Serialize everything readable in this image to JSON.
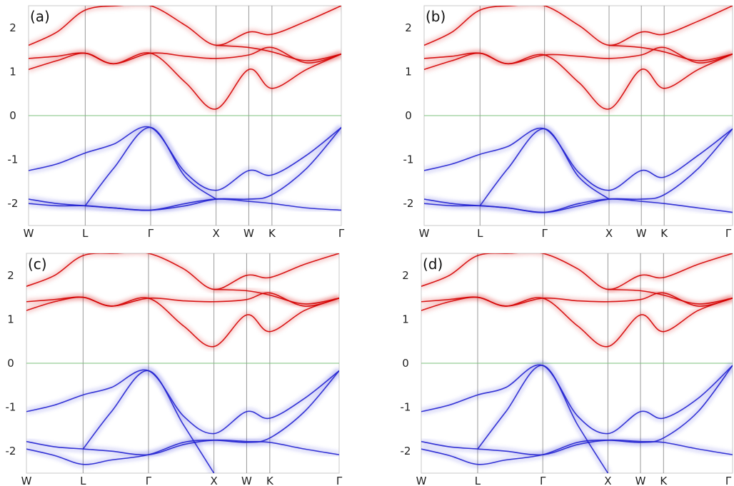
{
  "chart_data": [
    {
      "type": "line",
      "panel_label": "(a)",
      "xlabel": "",
      "ylabel": "",
      "xticks": [
        "W",
        "L",
        "Γ",
        "X",
        "W",
        "K",
        "Γ"
      ],
      "xtick_positions": [
        0,
        0.866,
        1.866,
        2.866,
        3.366,
        3.72,
        4.78
      ],
      "yticks": [
        -2,
        -1,
        0,
        1,
        2
      ],
      "ylim": [
        -2.5,
        2.5
      ],
      "xlim": [
        0,
        4.78
      ],
      "fermi_level": 0,
      "grid": "vertical lines at high-symmetry points",
      "series": [
        {
          "color": "#d40000",
          "x": [
            0,
            0.433,
            0.866,
            1.3,
            1.866,
            2.4,
            2.866,
            3.366,
            3.72,
            4.25,
            4.78
          ],
          "y": [
            1.05,
            1.25,
            1.42,
            1.18,
            1.42,
            0.75,
            0.15,
            1.05,
            0.62,
            1.05,
            1.4
          ]
        },
        {
          "color": "#d40000",
          "x": [
            0,
            0.433,
            0.866,
            1.3,
            1.866,
            2.4,
            2.866,
            3.366,
            3.72,
            4.25,
            4.78
          ],
          "y": [
            1.3,
            1.35,
            1.42,
            1.18,
            1.42,
            1.35,
            1.3,
            1.38,
            1.55,
            1.2,
            1.4
          ]
        },
        {
          "color": "#d40000",
          "x": [
            0,
            0.433,
            0.866,
            1.366,
            1.866,
            2.4,
            2.866,
            3.366,
            3.72,
            4.25,
            4.78
          ],
          "y": [
            1.6,
            1.9,
            2.4,
            2.5,
            2.5,
            2.05,
            1.6,
            1.9,
            1.85,
            2.15,
            2.5
          ]
        },
        {
          "color": "#d40000",
          "x": [
            2.866,
            3.366,
            3.72,
            4.25,
            4.78
          ],
          "y": [
            1.6,
            1.55,
            1.45,
            1.25,
            1.4
          ]
        },
        {
          "color": "#2020d0",
          "x": [
            0,
            0.433,
            0.866,
            1.3,
            1.866,
            2.4,
            2.866,
            3.366,
            3.72,
            4.25,
            4.78
          ],
          "y": [
            -1.25,
            -1.1,
            -0.85,
            -0.65,
            -0.27,
            -1.3,
            -1.7,
            -1.25,
            -1.35,
            -0.9,
            -0.27
          ]
        },
        {
          "color": "#2020d0",
          "x": [
            0,
            0.433,
            0.866,
            1.3,
            1.866,
            2.4,
            2.866,
            3.366,
            3.72,
            4.25,
            4.78
          ],
          "y": [
            -1.9,
            -2.0,
            -2.05,
            -2.1,
            -2.15,
            -2.05,
            -1.9,
            -1.9,
            -1.8,
            -1.2,
            -0.27
          ]
        },
        {
          "color": "#2020d0",
          "x": [
            0,
            0.433,
            0.866,
            1.3,
            1.866,
            2.4,
            2.866,
            3.366,
            3.72,
            4.25,
            4.78
          ],
          "y": [
            -2.0,
            -2.05,
            -2.05,
            -2.1,
            -2.15,
            -2.0,
            -1.9,
            -1.95,
            -2.0,
            -2.1,
            -2.15
          ]
        },
        {
          "color": "#2020d0",
          "x": [
            0.866,
            1.3,
            1.866,
            2.4,
            2.866
          ],
          "y": [
            -2.05,
            -1.2,
            -0.27,
            -1.4,
            -1.9
          ]
        }
      ]
    },
    {
      "type": "line",
      "panel_label": "(b)",
      "xlabel": "",
      "ylabel": "",
      "xticks": [
        "W",
        "L",
        "Γ",
        "X",
        "W",
        "K",
        "Γ"
      ],
      "xtick_positions": [
        0,
        0.866,
        1.866,
        2.866,
        3.366,
        3.72,
        4.78
      ],
      "yticks": [
        -2,
        -1,
        0,
        1,
        2
      ],
      "ylim": [
        -2.5,
        2.5
      ],
      "xlim": [
        0,
        4.78
      ],
      "fermi_level": 0,
      "grid": "vertical lines at high-symmetry points",
      "series": [
        {
          "color": "#d40000",
          "x": [
            0,
            0.433,
            0.866,
            1.3,
            1.866,
            2.4,
            2.866,
            3.366,
            3.72,
            4.25,
            4.78
          ],
          "y": [
            1.05,
            1.25,
            1.42,
            1.18,
            1.38,
            0.75,
            0.15,
            1.05,
            0.62,
            1.05,
            1.4
          ]
        },
        {
          "color": "#d40000",
          "x": [
            0,
            0.433,
            0.866,
            1.3,
            1.866,
            2.4,
            2.866,
            3.366,
            3.72,
            4.25,
            4.78
          ],
          "y": [
            1.3,
            1.35,
            1.42,
            1.18,
            1.38,
            1.35,
            1.3,
            1.38,
            1.55,
            1.2,
            1.4
          ]
        },
        {
          "color": "#d40000",
          "x": [
            0,
            0.433,
            0.866,
            1.366,
            1.866,
            2.4,
            2.866,
            3.366,
            3.72,
            4.25,
            4.78
          ],
          "y": [
            1.6,
            1.9,
            2.4,
            2.5,
            2.5,
            2.05,
            1.6,
            1.9,
            1.85,
            2.15,
            2.5
          ]
        },
        {
          "color": "#d40000",
          "x": [
            2.866,
            3.366,
            3.72,
            4.25,
            4.78
          ],
          "y": [
            1.6,
            1.55,
            1.45,
            1.25,
            1.4
          ]
        },
        {
          "color": "#2020d0",
          "x": [
            0,
            0.433,
            0.866,
            1.3,
            1.866,
            2.4,
            2.866,
            3.366,
            3.72,
            4.25,
            4.78
          ],
          "y": [
            -1.25,
            -1.1,
            -0.88,
            -0.7,
            -0.3,
            -1.3,
            -1.7,
            -1.25,
            -1.4,
            -0.9,
            -0.3
          ]
        },
        {
          "color": "#2020d0",
          "x": [
            0,
            0.433,
            0.866,
            1.3,
            1.866,
            2.4,
            2.866,
            3.366,
            3.72,
            4.25,
            4.78
          ],
          "y": [
            -1.9,
            -2.0,
            -2.05,
            -2.1,
            -2.2,
            -2.05,
            -1.9,
            -1.9,
            -1.8,
            -1.2,
            -0.3
          ]
        },
        {
          "color": "#2020d0",
          "x": [
            0,
            0.433,
            0.866,
            1.3,
            1.866,
            2.4,
            2.866,
            3.366,
            3.72,
            4.25,
            4.78
          ],
          "y": [
            -2.0,
            -2.05,
            -2.05,
            -2.1,
            -2.2,
            -2.0,
            -1.9,
            -1.95,
            -2.0,
            -2.1,
            -2.2
          ]
        },
        {
          "color": "#2020d0",
          "x": [
            0.866,
            1.3,
            1.866,
            2.4,
            2.866
          ],
          "y": [
            -2.05,
            -1.2,
            -0.3,
            -1.4,
            -1.9
          ]
        }
      ]
    },
    {
      "type": "line",
      "panel_label": "(c)",
      "xlabel": "",
      "ylabel": "",
      "xticks": [
        "W",
        "L",
        "Γ",
        "X",
        "W",
        "K",
        "Γ"
      ],
      "xtick_positions": [
        0,
        0.866,
        1.866,
        2.866,
        3.366,
        3.72,
        4.78
      ],
      "yticks": [
        -2,
        -1,
        0,
        1,
        2
      ],
      "ylim": [
        -2.5,
        2.5
      ],
      "xlim": [
        0,
        4.78
      ],
      "fermi_level": 0,
      "grid": "vertical lines at high-symmetry points",
      "series": [
        {
          "color": "#d40000",
          "x": [
            0,
            0.433,
            0.866,
            1.3,
            1.866,
            2.4,
            2.866,
            3.366,
            3.72,
            4.25,
            4.78
          ],
          "y": [
            1.2,
            1.4,
            1.5,
            1.3,
            1.48,
            0.85,
            0.38,
            1.1,
            0.72,
            1.2,
            1.48
          ]
        },
        {
          "color": "#d40000",
          "x": [
            0,
            0.433,
            0.866,
            1.3,
            1.866,
            2.4,
            2.866,
            3.366,
            3.72,
            4.25,
            4.78
          ],
          "y": [
            1.4,
            1.45,
            1.5,
            1.3,
            1.48,
            1.42,
            1.4,
            1.45,
            1.6,
            1.3,
            1.48
          ]
        },
        {
          "color": "#d40000",
          "x": [
            0,
            0.433,
            0.866,
            1.366,
            1.866,
            2.4,
            2.866,
            3.366,
            3.72,
            4.25,
            4.78
          ],
          "y": [
            1.75,
            2.0,
            2.45,
            2.5,
            2.5,
            2.15,
            1.68,
            2.0,
            1.95,
            2.25,
            2.5
          ]
        },
        {
          "color": "#d40000",
          "x": [
            2.866,
            3.366,
            3.72,
            4.25,
            4.78
          ],
          "y": [
            1.68,
            1.65,
            1.55,
            1.35,
            1.48
          ]
        },
        {
          "color": "#2020d0",
          "x": [
            0,
            0.433,
            0.866,
            1.3,
            1.866,
            2.4,
            2.866,
            3.366,
            3.72,
            4.25,
            4.78
          ],
          "y": [
            -1.1,
            -0.95,
            -0.72,
            -0.55,
            -0.17,
            -1.2,
            -1.6,
            -1.1,
            -1.25,
            -0.8,
            -0.17
          ]
        },
        {
          "color": "#2020d0",
          "x": [
            0,
            0.433,
            0.866,
            1.3,
            1.866,
            2.4,
            2.866,
            3.366,
            3.72,
            4.25,
            4.78
          ],
          "y": [
            -1.78,
            -1.9,
            -1.95,
            -2.0,
            -2.08,
            -1.85,
            -1.75,
            -1.78,
            -1.8,
            -1.95,
            -2.08
          ]
        },
        {
          "color": "#2020d0",
          "x": [
            0,
            0.433,
            0.866,
            1.3,
            1.866,
            2.4,
            2.866,
            3.366,
            3.72,
            4.25,
            4.78
          ],
          "y": [
            -1.95,
            -2.1,
            -2.3,
            -2.2,
            -2.08,
            -1.8,
            -1.75,
            -1.8,
            -1.7,
            -1.1,
            -0.17
          ]
        },
        {
          "color": "#2020d0",
          "x": [
            0.866,
            1.3,
            1.866,
            2.4,
            2.866
          ],
          "y": [
            -1.95,
            -1.1,
            -0.17,
            -1.4,
            -2.5
          ]
        }
      ]
    },
    {
      "type": "line",
      "panel_label": "(d)",
      "xlabel": "",
      "ylabel": "",
      "xticks": [
        "W",
        "L",
        "Γ",
        "X",
        "W",
        "K",
        "Γ"
      ],
      "xtick_positions": [
        0,
        0.866,
        1.866,
        2.866,
        3.366,
        3.72,
        4.78
      ],
      "yticks": [
        -2,
        -1,
        0,
        1,
        2
      ],
      "ylim": [
        -2.5,
        2.5
      ],
      "xlim": [
        0,
        4.78
      ],
      "fermi_level": 0,
      "grid": "vertical lines at high-symmetry points",
      "series": [
        {
          "color": "#d40000",
          "x": [
            0,
            0.433,
            0.866,
            1.3,
            1.866,
            2.4,
            2.866,
            3.366,
            3.72,
            4.25,
            4.78
          ],
          "y": [
            1.2,
            1.4,
            1.5,
            1.3,
            1.48,
            0.85,
            0.38,
            1.1,
            0.72,
            1.2,
            1.48
          ]
        },
        {
          "color": "#d40000",
          "x": [
            0,
            0.433,
            0.866,
            1.3,
            1.866,
            2.4,
            2.866,
            3.366,
            3.72,
            4.25,
            4.78
          ],
          "y": [
            1.4,
            1.45,
            1.5,
            1.3,
            1.48,
            1.42,
            1.4,
            1.45,
            1.6,
            1.3,
            1.48
          ]
        },
        {
          "color": "#d40000",
          "x": [
            0,
            0.433,
            0.866,
            1.366,
            1.866,
            2.4,
            2.866,
            3.366,
            3.72,
            4.25,
            4.78
          ],
          "y": [
            1.75,
            2.0,
            2.45,
            2.5,
            2.5,
            2.15,
            1.68,
            2.0,
            1.95,
            2.25,
            2.5
          ]
        },
        {
          "color": "#d40000",
          "x": [
            2.866,
            3.366,
            3.72,
            4.25,
            4.78
          ],
          "y": [
            1.68,
            1.65,
            1.55,
            1.35,
            1.48
          ]
        },
        {
          "color": "#2020d0",
          "x": [
            0,
            0.433,
            0.866,
            1.3,
            1.866,
            2.4,
            2.866,
            3.366,
            3.72,
            4.25,
            4.78
          ],
          "y": [
            -1.1,
            -0.95,
            -0.72,
            -0.55,
            -0.05,
            -1.2,
            -1.6,
            -1.1,
            -1.25,
            -0.8,
            -0.05
          ]
        },
        {
          "color": "#2020d0",
          "x": [
            0,
            0.433,
            0.866,
            1.3,
            1.866,
            2.4,
            2.866,
            3.366,
            3.72,
            4.25,
            4.78
          ],
          "y": [
            -1.78,
            -1.9,
            -1.95,
            -2.0,
            -2.08,
            -1.85,
            -1.75,
            -1.78,
            -1.8,
            -1.95,
            -2.08
          ]
        },
        {
          "color": "#2020d0",
          "x": [
            0,
            0.433,
            0.866,
            1.3,
            1.866,
            2.4,
            2.866,
            3.366,
            3.72,
            4.25,
            4.78
          ],
          "y": [
            -1.95,
            -2.1,
            -2.3,
            -2.2,
            -2.08,
            -1.8,
            -1.75,
            -1.8,
            -1.7,
            -1.1,
            -0.05
          ]
        },
        {
          "color": "#2020d0",
          "x": [
            0.866,
            1.3,
            1.866,
            2.4,
            2.866
          ],
          "y": [
            -1.95,
            -1.1,
            -0.05,
            -1.4,
            -2.5
          ]
        }
      ]
    }
  ]
}
